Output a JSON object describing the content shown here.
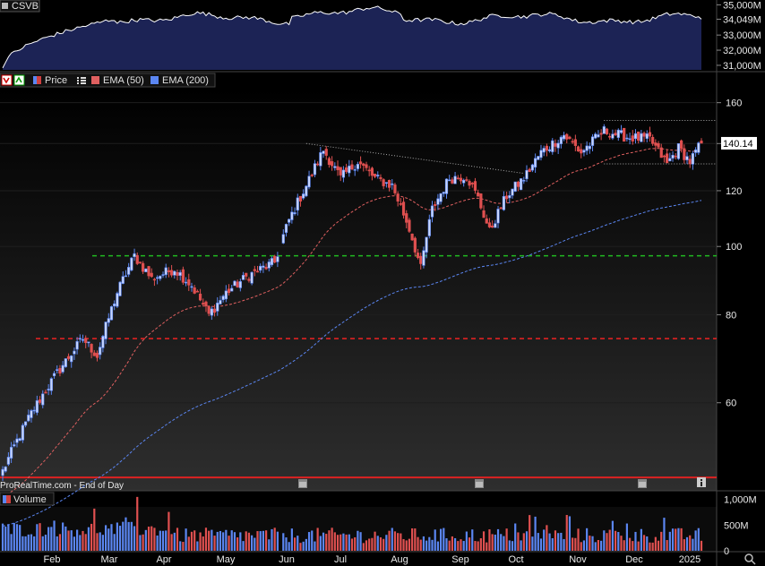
{
  "instrument": "CSVB",
  "footer_text": "ProRealTime.com - End of Day",
  "legend": {
    "price_label": "Price",
    "ema50_label": "EMA (50)",
    "ema200_label": "EMA (200)",
    "volume_label": "Volume"
  },
  "colors": {
    "up": "#5b86f2",
    "down": "#e05050",
    "ema50": "#e06060",
    "ema200": "#5b86f2",
    "support_green": "#22bb22",
    "support_red": "#dd2222",
    "last_price_bg": "#ffffff",
    "breadth_fill": "#1c2355"
  },
  "chart_data": [
    {
      "type": "area",
      "title": "",
      "name": "breadth",
      "ylim": [
        30700,
        35200
      ],
      "y_ticks": [
        "35,000M",
        "34,049M",
        "33,000M",
        "32,000M",
        "31,000M"
      ],
      "y_tick_values": [
        35000,
        34049,
        33000,
        32000,
        31000
      ],
      "last_value_label": "34,049M",
      "values_start": 30800,
      "values_end": 34049
    },
    {
      "type": "candlestick",
      "title": "",
      "ylog": true,
      "ylim": [
        45,
        168
      ],
      "y_ticks": [
        "160",
        "140",
        "120",
        "100",
        "80",
        "60"
      ],
      "y_tick_values": [
        160,
        140,
        120,
        100,
        80,
        60
      ],
      "last_price": "140.14",
      "x_months": [
        "Feb",
        "Mar",
        "Apr",
        "May",
        "Jun",
        "Jul",
        "Aug",
        "Sep",
        "Oct",
        "Nov",
        "Dec",
        "2025"
      ],
      "anchors": [
        [
          0,
          48
        ],
        [
          10,
          58
        ],
        [
          20,
          67
        ],
        [
          28,
          74
        ],
        [
          33,
          70
        ],
        [
          40,
          86
        ],
        [
          46,
          97
        ],
        [
          52,
          90
        ],
        [
          60,
          93
        ],
        [
          66,
          88
        ],
        [
          72,
          80
        ],
        [
          78,
          86
        ],
        [
          86,
          91
        ],
        [
          95,
          95
        ],
        [
          100,
          109
        ],
        [
          106,
          122
        ],
        [
          112,
          137
        ],
        [
          118,
          125
        ],
        [
          124,
          132
        ],
        [
          130,
          125
        ],
        [
          136,
          122
        ],
        [
          142,
          106
        ],
        [
          146,
          93
        ],
        [
          150,
          113
        ],
        [
          156,
          125
        ],
        [
          162,
          126
        ],
        [
          166,
          117
        ],
        [
          170,
          105
        ],
        [
          176,
          118
        ],
        [
          182,
          125
        ],
        [
          188,
          136
        ],
        [
          196,
          144
        ],
        [
          202,
          136
        ],
        [
          210,
          146
        ],
        [
          218,
          143
        ],
        [
          226,
          142
        ],
        [
          232,
          131
        ],
        [
          236,
          138
        ],
        [
          240,
          132
        ],
        [
          244,
          140.14
        ]
      ],
      "ema50_start": 44,
      "ema200_start": 40,
      "levels": [
        {
          "name": "resistance-green",
          "value": 97,
          "color": "#22bb22",
          "style": "dashed"
        },
        {
          "name": "support-red",
          "value": 74,
          "color": "#dd2222",
          "style": "dashed"
        },
        {
          "name": "base-red",
          "value": 47,
          "color": "#dd2222",
          "style": "solid"
        }
      ],
      "trend_line": {
        "from_value": 140,
        "to_value": 127
      },
      "channel_top": 151,
      "channel_bottom": 131
    },
    {
      "type": "bar",
      "title": "",
      "name": "volume",
      "y_ticks": [
        "1,000M",
        "500M",
        "0"
      ],
      "y_tick_values": [
        1000,
        500,
        0
      ],
      "ylim": [
        0,
        1100
      ]
    }
  ]
}
